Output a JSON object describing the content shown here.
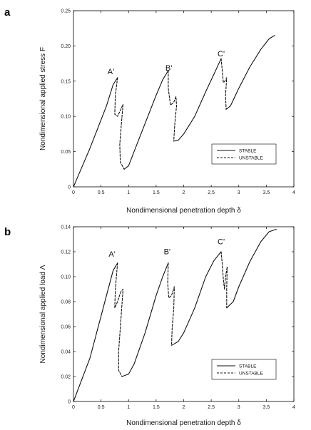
{
  "chart_data": [
    {
      "panel": "a",
      "type": "line",
      "title": "",
      "xlabel": "Nondimensional penetration depth δ",
      "ylabel": "Nondimensional applied stress F",
      "xlim": [
        0,
        4
      ],
      "ylim": [
        0,
        0.25
      ],
      "xticks": [
        "0",
        "0.5",
        "1",
        "1.5",
        "2",
        "2.5",
        "3",
        "3.5",
        "4"
      ],
      "yticks": [
        "0",
        "0.05",
        "0.10",
        "0.15",
        "0.20",
        "0.25"
      ],
      "grid": false,
      "legend": {
        "position": "bottom-right",
        "entries": [
          "STABLE",
          "UNSTABLE"
        ]
      },
      "annotations": [
        {
          "text": "A'",
          "x": 0.68,
          "y": 0.16
        },
        {
          "text": "B'",
          "x": 1.73,
          "y": 0.165
        },
        {
          "text": "C'",
          "x": 2.68,
          "y": 0.185
        }
      ],
      "series": [
        {
          "name": "STABLE",
          "style": "solid",
          "segments": [
            [
              [
                0,
                0
              ],
              [
                0.3,
                0.055
              ],
              [
                0.6,
                0.115
              ],
              [
                0.72,
                0.145
              ],
              [
                0.8,
                0.155
              ]
            ],
            [
              [
                0.92,
                0.025
              ],
              [
                1.0,
                0.03
              ],
              [
                1.1,
                0.05
              ],
              [
                1.3,
                0.09
              ],
              [
                1.5,
                0.13
              ],
              [
                1.62,
                0.152
              ],
              [
                1.72,
                0.165
              ]
            ],
            [
              [
                1.82,
                0.065
              ],
              [
                1.9,
                0.066
              ],
              [
                2.0,
                0.075
              ],
              [
                2.2,
                0.1
              ],
              [
                2.4,
                0.135
              ],
              [
                2.55,
                0.16
              ],
              [
                2.68,
                0.182
              ]
            ],
            [
              [
                2.77,
                0.11
              ],
              [
                2.85,
                0.115
              ],
              [
                3.0,
                0.14
              ],
              [
                3.2,
                0.17
              ],
              [
                3.4,
                0.195
              ],
              [
                3.55,
                0.21
              ],
              [
                3.65,
                0.215
              ]
            ]
          ]
        },
        {
          "name": "UNSTABLE",
          "style": "dashed",
          "segments": [
            [
              [
                0.8,
                0.155
              ],
              [
                0.76,
                0.13
              ],
              [
                0.75,
                0.103
              ],
              [
                0.8,
                0.1
              ],
              [
                0.86,
                0.11
              ],
              [
                0.9,
                0.117
              ],
              [
                0.87,
                0.09
              ],
              [
                0.84,
                0.06
              ],
              [
                0.85,
                0.035
              ],
              [
                0.92,
                0.025
              ]
            ],
            [
              [
                1.72,
                0.165
              ],
              [
                1.72,
                0.14
              ],
              [
                1.76,
                0.116
              ],
              [
                1.82,
                0.12
              ],
              [
                1.86,
                0.128
              ],
              [
                1.87,
                0.115
              ],
              [
                1.84,
                0.09
              ],
              [
                1.82,
                0.065
              ]
            ],
            [
              [
                2.68,
                0.182
              ],
              [
                2.7,
                0.165
              ],
              [
                2.72,
                0.148
              ],
              [
                2.75,
                0.15
              ],
              [
                2.78,
                0.155
              ],
              [
                2.76,
                0.13
              ],
              [
                2.77,
                0.11
              ]
            ]
          ]
        }
      ]
    },
    {
      "panel": "b",
      "type": "line",
      "title": "",
      "xlabel": "Nondimensional penetration depth δ",
      "ylabel": "Nondimensional applied load Λ",
      "xlim": [
        0,
        4
      ],
      "ylim": [
        0,
        0.14
      ],
      "xticks": [
        "0",
        "0.5",
        "1",
        "1.5",
        "2",
        "2.5",
        "3",
        "3.5",
        "4"
      ],
      "yticks": [
        "0",
        "0.02",
        "0.04",
        "0.06",
        "0.08",
        "0.10",
        "0.12",
        "0.14"
      ],
      "grid": false,
      "legend": {
        "position": "bottom-right",
        "entries": [
          "STABLE",
          "UNSTABLE"
        ]
      },
      "annotations": [
        {
          "text": "A'",
          "x": 0.7,
          "y": 0.116
        },
        {
          "text": "B'",
          "x": 1.7,
          "y": 0.118
        },
        {
          "text": "C'",
          "x": 2.68,
          "y": 0.126
        }
      ],
      "series": [
        {
          "name": "STABLE",
          "style": "solid",
          "segments": [
            [
              [
                0,
                0
              ],
              [
                0.3,
                0.035
              ],
              [
                0.6,
                0.085
              ],
              [
                0.72,
                0.105
              ],
              [
                0.8,
                0.111
              ]
            ],
            [
              [
                0.88,
                0.02
              ],
              [
                1.0,
                0.022
              ],
              [
                1.1,
                0.03
              ],
              [
                1.3,
                0.055
              ],
              [
                1.5,
                0.085
              ],
              [
                1.62,
                0.1
              ],
              [
                1.72,
                0.111
              ]
            ],
            [
              [
                1.78,
                0.045
              ],
              [
                1.9,
                0.048
              ],
              [
                2.0,
                0.055
              ],
              [
                2.2,
                0.075
              ],
              [
                2.4,
                0.1
              ],
              [
                2.55,
                0.113
              ],
              [
                2.68,
                0.12
              ]
            ],
            [
              [
                2.78,
                0.075
              ],
              [
                2.9,
                0.08
              ],
              [
                3.0,
                0.092
              ],
              [
                3.2,
                0.112
              ],
              [
                3.4,
                0.128
              ],
              [
                3.55,
                0.136
              ],
              [
                3.68,
                0.138
              ]
            ]
          ]
        },
        {
          "name": "UNSTABLE",
          "style": "dashed",
          "segments": [
            [
              [
                0.8,
                0.111
              ],
              [
                0.76,
                0.09
              ],
              [
                0.75,
                0.075
              ],
              [
                0.8,
                0.08
              ],
              [
                0.86,
                0.088
              ],
              [
                0.9,
                0.09
              ],
              [
                0.86,
                0.065
              ],
              [
                0.82,
                0.04
              ],
              [
                0.82,
                0.025
              ],
              [
                0.88,
                0.02
              ]
            ],
            [
              [
                1.72,
                0.111
              ],
              [
                1.71,
                0.095
              ],
              [
                1.73,
                0.083
              ],
              [
                1.78,
                0.085
              ],
              [
                1.83,
                0.092
              ],
              [
                1.82,
                0.075
              ],
              [
                1.79,
                0.058
              ],
              [
                1.78,
                0.045
              ]
            ],
            [
              [
                2.68,
                0.12
              ],
              [
                2.7,
                0.11
              ],
              [
                2.72,
                0.098
              ],
              [
                2.74,
                0.09
              ],
              [
                2.76,
                0.1
              ],
              [
                2.79,
                0.108
              ],
              [
                2.78,
                0.09
              ],
              [
                2.78,
                0.075
              ]
            ]
          ]
        }
      ]
    }
  ]
}
